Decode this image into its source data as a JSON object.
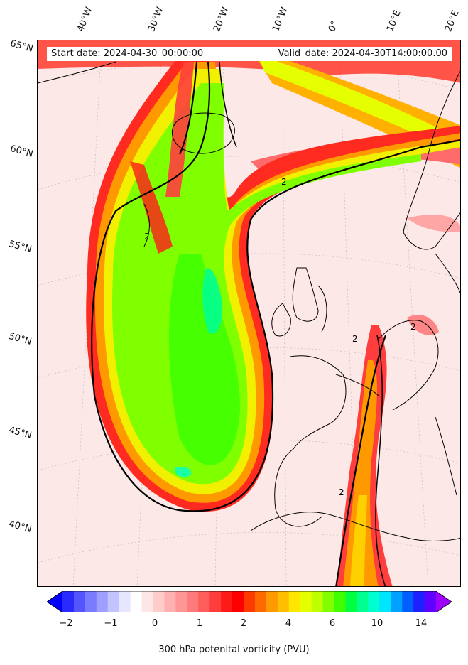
{
  "header": {
    "start_date": "Start date: 2024-04-30_00:00:00",
    "valid_date": "Valid_date: 2024-04-30T14:00:00.00"
  },
  "axes": {
    "lon_labels": [
      "40°W",
      "30°W",
      "20°W",
      "10°W",
      "0°",
      "10°E",
      "20°E"
    ],
    "lat_labels": [
      "65°N",
      "60°N",
      "55°N",
      "50°N",
      "45°N",
      "40°N"
    ]
  },
  "colorbar": {
    "label": "300 hPa potenital vorticity (PVU)",
    "ticks": [
      "−2",
      "−1",
      "0",
      "1",
      "2",
      "4",
      "6",
      "10",
      "14"
    ],
    "colors": [
      "#0000ff",
      "#2a2aff",
      "#5555ff",
      "#7b7bff",
      "#9f9fff",
      "#c3c3ff",
      "#e6e6ff",
      "#ffffff",
      "#ffe6e6",
      "#ffcccc",
      "#ffb0b0",
      "#ff9696",
      "#ff7a7a",
      "#ff5c5c",
      "#ff3d3d",
      "#ff1a1a",
      "#ff0000",
      "#ff3a00",
      "#ff6a00",
      "#ff9900",
      "#ffbf00",
      "#ffe600",
      "#e5ff00",
      "#bfff00",
      "#80ff00",
      "#40ff00",
      "#00ff40",
      "#00ff90",
      "#00ffd0",
      "#00e5ff",
      "#00a0ff",
      "#0060ff",
      "#2020ff",
      "#6000ff",
      "#a000ff"
    ]
  },
  "map": {
    "contour_label": "2"
  }
}
